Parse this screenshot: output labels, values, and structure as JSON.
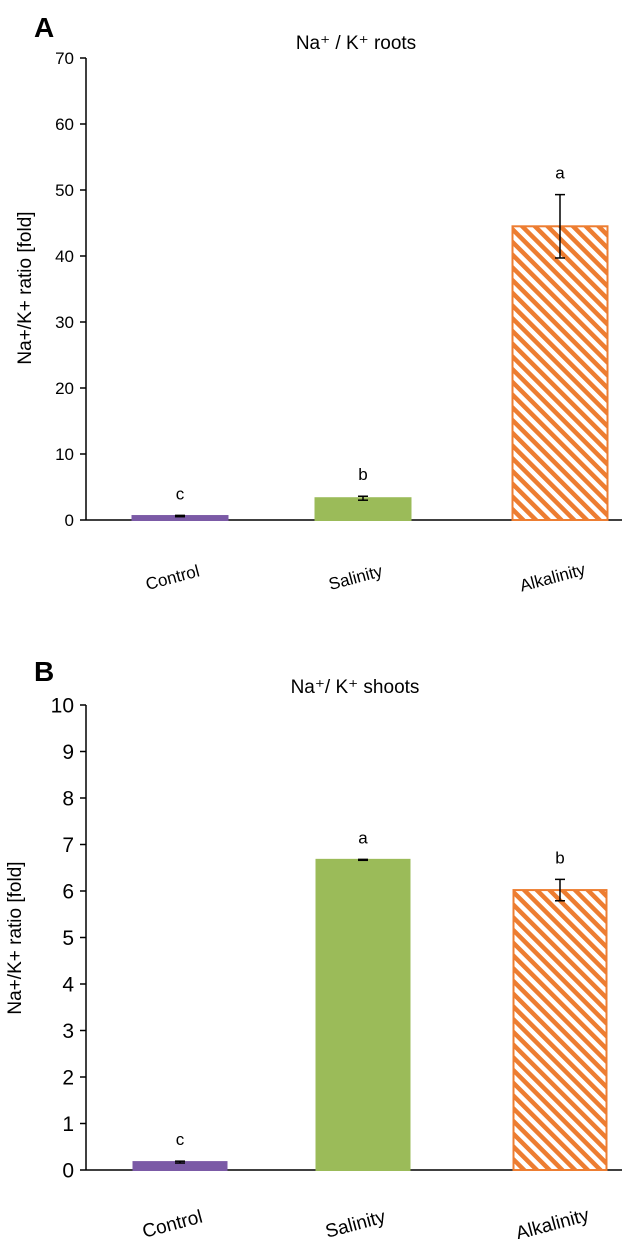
{
  "chart_data": [
    {
      "type": "bar",
      "panel_label": "A",
      "title": "Na⁺ / K⁺ roots",
      "ylabel": "Na+/K+ ratio [fold]",
      "xlabel": "",
      "ylim": [
        0,
        70
      ],
      "yticks": [
        0,
        10,
        20,
        30,
        40,
        50,
        60,
        70
      ],
      "categories": [
        "Control",
        "Salinity",
        "Alkalinity"
      ],
      "values": [
        0.6,
        3.3,
        44.5
      ],
      "errors": [
        0.1,
        0.3,
        4.8
      ],
      "significance": [
        "c",
        "b",
        "a"
      ],
      "bar_colors": [
        "#7B5AA6",
        "#9BBB59",
        "#ED7D31"
      ],
      "bar_fills": [
        "solid",
        "solid",
        "hatched"
      ],
      "grid": false,
      "legend": "none"
    },
    {
      "type": "bar",
      "panel_label": "B",
      "title": "Na⁺/ K⁺ shoots",
      "ylabel": "Na+/K+ ratio [fold]",
      "xlabel": "",
      "ylim": [
        0,
        10
      ],
      "yticks": [
        0,
        1,
        2,
        3,
        4,
        5,
        6,
        7,
        8,
        9,
        10
      ],
      "categories": [
        "Control",
        "Salinity",
        "Alkalinity"
      ],
      "values": [
        0.17,
        6.67,
        6.02
      ],
      "errors": [
        0.02,
        0.01,
        0.23
      ],
      "significance": [
        "c",
        "a",
        "b"
      ],
      "bar_colors": [
        "#7B5AA6",
        "#9BBB59",
        "#ED7D31"
      ],
      "bar_fills": [
        "solid",
        "solid",
        "hatched"
      ],
      "grid": false,
      "legend": "none"
    }
  ]
}
